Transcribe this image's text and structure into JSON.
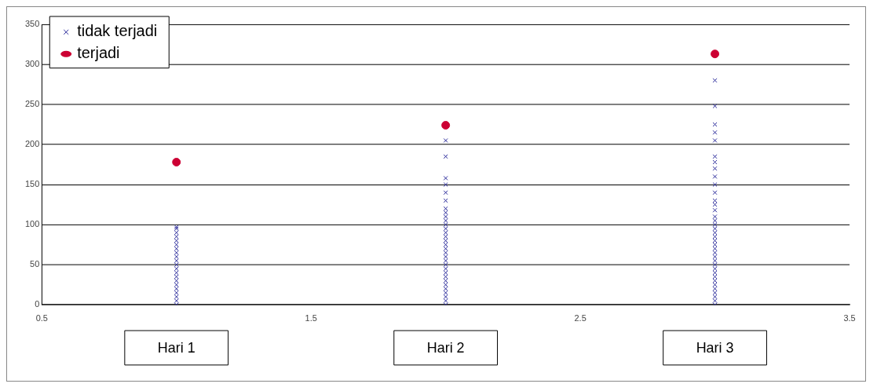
{
  "chart_data": {
    "type": "scatter",
    "xlim": [
      0.5,
      3.5
    ],
    "xticks": [
      0.5,
      1.5,
      2.5,
      3.5
    ],
    "ylim": [
      0,
      350
    ],
    "yticks": [
      0,
      50,
      100,
      150,
      200,
      250,
      300,
      350
    ],
    "grid": "y",
    "legend": "top left",
    "annotations": [
      "Hari 1",
      "Hari 2",
      "Hari 3"
    ],
    "series": [
      {
        "name": "tidak terjadi",
        "color": "#2b2b9b",
        "marker": "cross",
        "x": [
          1,
          1,
          1,
          1,
          1,
          1,
          1,
          1,
          1,
          1,
          1,
          1,
          1,
          1,
          1,
          1,
          1,
          1,
          1,
          1,
          1,
          2,
          2,
          2,
          2,
          2,
          2,
          2,
          2,
          2,
          2,
          2,
          2,
          2,
          2,
          2,
          2,
          2,
          2,
          2,
          2,
          2,
          2,
          2,
          2,
          2,
          2,
          2,
          2,
          2,
          2,
          2,
          3,
          3,
          3,
          3,
          3,
          3,
          3,
          3,
          3,
          3,
          3,
          3,
          3,
          3,
          3,
          3,
          3,
          3,
          3,
          3,
          3,
          3,
          3,
          3,
          3,
          3,
          3,
          3,
          3,
          3,
          3,
          3,
          3,
          3,
          3,
          3,
          3
        ],
        "values": [
          0,
          5,
          10,
          15,
          20,
          25,
          30,
          35,
          40,
          45,
          50,
          55,
          60,
          65,
          70,
          75,
          80,
          85,
          90,
          95,
          97,
          0,
          5,
          10,
          15,
          20,
          25,
          30,
          35,
          40,
          45,
          50,
          55,
          60,
          65,
          70,
          75,
          80,
          85,
          90,
          95,
          100,
          105,
          110,
          115,
          120,
          130,
          140,
          150,
          158,
          185,
          205,
          0,
          5,
          10,
          15,
          20,
          25,
          30,
          35,
          40,
          45,
          50,
          55,
          60,
          65,
          70,
          75,
          80,
          85,
          90,
          95,
          100,
          105,
          110,
          118,
          125,
          130,
          140,
          150,
          160,
          170,
          178,
          185,
          205,
          215,
          225,
          248,
          280
        ]
      },
      {
        "name": "terjadi",
        "color": "#cc0033",
        "marker": "circle",
        "x": [
          1,
          2,
          3
        ],
        "values": [
          178,
          224,
          313
        ]
      }
    ]
  }
}
